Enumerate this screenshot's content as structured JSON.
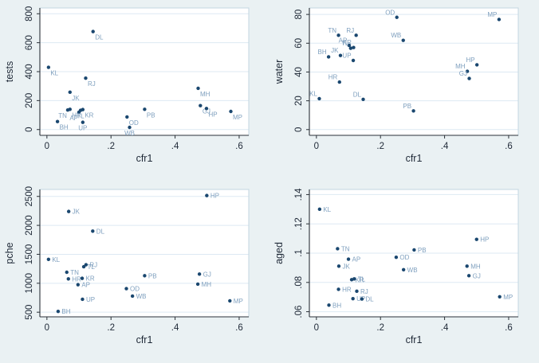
{
  "figure_title": "",
  "colors": {
    "background": "#eaf1f3",
    "plot_background": "#ffffff",
    "plot_border": "#c3d6e0",
    "gridline": "#dde9f3",
    "axis_line": "#2b3138",
    "tick_text": "#1f2937",
    "marker": "#1a476f",
    "marker_label": "#7e9fbe"
  },
  "chart_data": [
    {
      "type": "scatter",
      "title": "",
      "xlabel": "cfr1",
      "ylabel": "tests",
      "xlim": [
        -0.022,
        0.63
      ],
      "ylim": [
        -40,
        840
      ],
      "grid": "horizontal",
      "xticks": [
        {
          "v": 0,
          "label": "0"
        },
        {
          "v": 0.2,
          "label": ".2"
        },
        {
          "v": 0.4,
          "label": ".4"
        },
        {
          "v": 0.6,
          "label": ".6"
        }
      ],
      "yticks": [
        {
          "v": 0,
          "label": "0"
        },
        {
          "v": 200,
          "label": "200"
        },
        {
          "v": 400,
          "label": "400"
        },
        {
          "v": 600,
          "label": "600"
        },
        {
          "v": 800,
          "label": "800"
        }
      ],
      "points": [
        {
          "s": "KL",
          "x": 0.005,
          "y": 430,
          "p": "br"
        },
        {
          "s": "BH",
          "x": 0.033,
          "y": 55,
          "p": "br"
        },
        {
          "s": "TN",
          "x": 0.065,
          "y": 135,
          "p": "bl"
        },
        {
          "s": "HR",
          "x": 0.072,
          "y": 140,
          "p": "br"
        },
        {
          "s": "JK",
          "x": 0.072,
          "y": 258,
          "p": "br"
        },
        {
          "s": "AP",
          "x": 0.1,
          "y": 120,
          "p": "bl"
        },
        {
          "s": "TL",
          "x": 0.105,
          "y": 133,
          "p": "b"
        },
        {
          "s": "KR",
          "x": 0.112,
          "y": 138,
          "p": "br"
        },
        {
          "s": "UP",
          "x": 0.112,
          "y": 50,
          "p": "b"
        },
        {
          "s": "RJ",
          "x": 0.121,
          "y": 355,
          "p": "br"
        },
        {
          "s": "DL",
          "x": 0.144,
          "y": 677,
          "p": "br"
        },
        {
          "s": "OD",
          "x": 0.25,
          "y": 87,
          "p": "br"
        },
        {
          "s": "WB",
          "x": 0.258,
          "y": 15,
          "p": "b"
        },
        {
          "s": "PB",
          "x": 0.305,
          "y": 140,
          "p": "br"
        },
        {
          "s": "MH",
          "x": 0.472,
          "y": 285,
          "p": "br"
        },
        {
          "s": "GJ",
          "x": 0.479,
          "y": 165,
          "p": "br"
        },
        {
          "s": "HP",
          "x": 0.498,
          "y": 145,
          "p": "br"
        },
        {
          "s": "MP",
          "x": 0.574,
          "y": 125,
          "p": "br"
        }
      ]
    },
    {
      "type": "scatter",
      "title": "",
      "xlabel": "cfr1",
      "ylabel": "water",
      "xlim": [
        -0.022,
        0.63
      ],
      "ylim": [
        -4,
        84.5
      ],
      "grid": "horizontal",
      "xticks": [
        {
          "v": 0,
          "label": "0"
        },
        {
          "v": 0.2,
          "label": ".2"
        },
        {
          "v": 0.4,
          "label": ".4"
        },
        {
          "v": 0.6,
          "label": ".6"
        }
      ],
      "yticks": [
        {
          "v": 0,
          "label": "0"
        },
        {
          "v": 20,
          "label": "20"
        },
        {
          "v": 40,
          "label": "40"
        },
        {
          "v": 60,
          "label": "60"
        },
        {
          "v": 80,
          "label": "80"
        }
      ],
      "points": [
        {
          "s": "KL",
          "x": 0.009,
          "y": 21.5,
          "p": "al"
        },
        {
          "s": "BH",
          "x": 0.038,
          "y": 50.5,
          "p": "al"
        },
        {
          "s": "TN",
          "x": 0.069,
          "y": 65.5,
          "p": "al"
        },
        {
          "s": "HR",
          "x": 0.072,
          "y": 33,
          "p": "al"
        },
        {
          "s": "JK",
          "x": 0.075,
          "y": 51.5,
          "p": "al"
        },
        {
          "s": "AP",
          "x": 0.102,
          "y": 58.5,
          "p": "al"
        },
        {
          "s": "TL",
          "x": 0.107,
          "y": 56.5,
          "p": "al"
        },
        {
          "s": "UP",
          "x": 0.115,
          "y": 48,
          "p": "al"
        },
        {
          "s": "KR",
          "x": 0.116,
          "y": 57,
          "p": "al"
        },
        {
          "s": "RJ",
          "x": 0.124,
          "y": 65.5,
          "p": "al"
        },
        {
          "s": "DL",
          "x": 0.146,
          "y": 21,
          "p": "al"
        },
        {
          "s": "OD",
          "x": 0.251,
          "y": 78,
          "p": "al"
        },
        {
          "s": "WB",
          "x": 0.271,
          "y": 62,
          "p": "al"
        },
        {
          "s": "PB",
          "x": 0.303,
          "y": 13,
          "p": "al"
        },
        {
          "s": "MH",
          "x": 0.471,
          "y": 40.5,
          "p": "al"
        },
        {
          "s": "GJ",
          "x": 0.477,
          "y": 35.5,
          "p": "al"
        },
        {
          "s": "HP",
          "x": 0.501,
          "y": 45,
          "p": "al"
        },
        {
          "s": "MP",
          "x": 0.57,
          "y": 76.5,
          "p": "al"
        }
      ]
    },
    {
      "type": "scatter",
      "title": "",
      "xlabel": "cfr1",
      "ylabel": "pche",
      "xlim": [
        -0.022,
        0.63
      ],
      "ylim": [
        420,
        2620
      ],
      "grid": "horizontal",
      "xticks": [
        {
          "v": 0,
          "label": "0"
        },
        {
          "v": 0.2,
          "label": ".2"
        },
        {
          "v": 0.4,
          "label": ".4"
        },
        {
          "v": 0.6,
          "label": ".6"
        }
      ],
      "yticks": [
        {
          "v": 500,
          "label": "500"
        },
        {
          "v": 1000,
          "label": "1000"
        },
        {
          "v": 1500,
          "label": "1500"
        },
        {
          "v": 2000,
          "label": "2000"
        },
        {
          "v": 2500,
          "label": "2500"
        }
      ],
      "points": [
        {
          "s": "KL",
          "x": 0.005,
          "y": 1413,
          "p": "r"
        },
        {
          "s": "BH",
          "x": 0.035,
          "y": 514,
          "p": "r"
        },
        {
          "s": "TN",
          "x": 0.062,
          "y": 1190,
          "p": "r"
        },
        {
          "s": "HR",
          "x": 0.067,
          "y": 1075,
          "p": "r"
        },
        {
          "s": "JK",
          "x": 0.068,
          "y": 2240,
          "p": "r"
        },
        {
          "s": "AP",
          "x": 0.097,
          "y": 975,
          "p": "r"
        },
        {
          "s": "KR",
          "x": 0.11,
          "y": 1085,
          "p": "r"
        },
        {
          "s": "UP",
          "x": 0.111,
          "y": 723,
          "p": "r"
        },
        {
          "s": "TL",
          "x": 0.115,
          "y": 1285,
          "p": "r"
        },
        {
          "s": "RJ",
          "x": 0.122,
          "y": 1320,
          "p": "r"
        },
        {
          "s": "DL",
          "x": 0.143,
          "y": 1900,
          "p": "r"
        },
        {
          "s": "OD",
          "x": 0.248,
          "y": 907,
          "p": "r"
        },
        {
          "s": "WB",
          "x": 0.267,
          "y": 778,
          "p": "r"
        },
        {
          "s": "PB",
          "x": 0.305,
          "y": 1130,
          "p": "r"
        },
        {
          "s": "MH",
          "x": 0.471,
          "y": 984,
          "p": "r"
        },
        {
          "s": "GJ",
          "x": 0.476,
          "y": 1158,
          "p": "r"
        },
        {
          "s": "HP",
          "x": 0.499,
          "y": 2515,
          "p": "r"
        },
        {
          "s": "MP",
          "x": 0.571,
          "y": 696,
          "p": "r"
        }
      ]
    },
    {
      "type": "scatter",
      "title": "",
      "xlabel": "cfr1",
      "ylabel": "aged",
      "xlim": [
        -0.022,
        0.63
      ],
      "ylim": [
        0.0565,
        0.1435
      ],
      "grid": "horizontal",
      "xticks": [
        {
          "v": 0,
          "label": "0"
        },
        {
          "v": 0.2,
          "label": ".2"
        },
        {
          "v": 0.4,
          "label": ".4"
        },
        {
          "v": 0.6,
          "label": ".6"
        }
      ],
      "yticks": [
        {
          "v": 0.06,
          "label": ".06"
        },
        {
          "v": 0.08,
          "label": ".08"
        },
        {
          "v": 0.1,
          "label": ".1"
        },
        {
          "v": 0.12,
          "label": ".12"
        },
        {
          "v": 0.14,
          "label": ".14"
        }
      ],
      "points": [
        {
          "s": "KL",
          "x": 0.01,
          "y": 0.13,
          "p": "r"
        },
        {
          "s": "BH",
          "x": 0.039,
          "y": 0.0645,
          "p": "r"
        },
        {
          "s": "TN",
          "x": 0.066,
          "y": 0.103,
          "p": "r"
        },
        {
          "s": "HR",
          "x": 0.069,
          "y": 0.0753,
          "p": "r"
        },
        {
          "s": "JK",
          "x": 0.07,
          "y": 0.0911,
          "p": "r"
        },
        {
          "s": "AP",
          "x": 0.1,
          "y": 0.0959,
          "p": "r"
        },
        {
          "s": "KR",
          "x": 0.11,
          "y": 0.0819,
          "p": "r"
        },
        {
          "s": "UP",
          "x": 0.114,
          "y": 0.0689,
          "p": "r"
        },
        {
          "s": "TL",
          "x": 0.118,
          "y": 0.0824,
          "p": "r"
        },
        {
          "s": "RJ",
          "x": 0.126,
          "y": 0.074,
          "p": "r"
        },
        {
          "s": "DL",
          "x": 0.142,
          "y": 0.0687,
          "p": "r"
        },
        {
          "s": "OD",
          "x": 0.249,
          "y": 0.0972,
          "p": "r"
        },
        {
          "s": "WB",
          "x": 0.272,
          "y": 0.0887,
          "p": "r"
        },
        {
          "s": "PB",
          "x": 0.305,
          "y": 0.1022,
          "p": "r"
        },
        {
          "s": "MH",
          "x": 0.47,
          "y": 0.0911,
          "p": "r"
        },
        {
          "s": "GJ",
          "x": 0.476,
          "y": 0.0846,
          "p": "r"
        },
        {
          "s": "HP",
          "x": 0.5,
          "y": 0.1094,
          "p": "r"
        },
        {
          "s": "MP",
          "x": 0.572,
          "y": 0.0702,
          "p": "r"
        }
      ]
    }
  ]
}
